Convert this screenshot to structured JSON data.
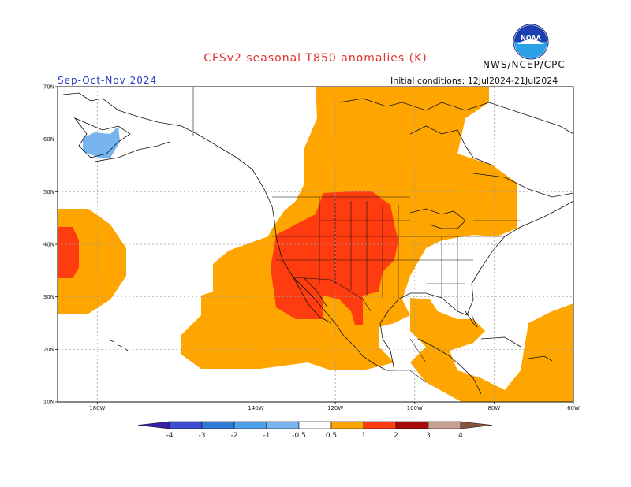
{
  "header": {
    "title": "CFSv2 seasonal T850 anomalies (K)",
    "agency": "NWS/NCEP/CPC",
    "season": "Sep-Oct-Nov 2024",
    "initial_conditions": "Initial conditions: 12Jul2024-21Jul2024",
    "logo_text": "NOAA"
  },
  "map": {
    "lon_range": [
      -190,
      -60
    ],
    "lat_range": [
      10,
      70
    ],
    "lon_ticks": [
      {
        "lon": -180,
        "label": "180W"
      },
      {
        "lon": -140,
        "label": "140W"
      },
      {
        "lon": -120,
        "label": "120W"
      },
      {
        "lon": -100,
        "label": "100W"
      },
      {
        "lon": -80,
        "label": "80W"
      },
      {
        "lon": -60,
        "label": "60W"
      }
    ],
    "lat_ticks": [
      {
        "lat": 70,
        "label": "70N"
      },
      {
        "lat": 60,
        "label": "60N"
      },
      {
        "lat": 50,
        "label": "50N"
      },
      {
        "lat": 40,
        "label": "40N"
      },
      {
        "lat": 30,
        "label": "30N"
      },
      {
        "lat": 20,
        "label": "20N"
      },
      {
        "lat": 10,
        "label": "10N"
      }
    ],
    "anomaly_levels": [
      {
        "range": [
          0.5,
          1
        ],
        "color": "#ffa500"
      },
      {
        "range": [
          1,
          2
        ],
        "color": "#ff3c10"
      },
      {
        "range": [
          -1,
          -0.5
        ],
        "color": "#78b4f0"
      }
    ]
  },
  "colorbar": {
    "colors": [
      "#3a1ea8",
      "#3c4fd2",
      "#2f7cd6",
      "#4ea0ea",
      "#78b4f0",
      "#ffffff",
      "#ffa500",
      "#ff3c10",
      "#a80a0a",
      "#c8a090",
      "#8a5040"
    ],
    "labels": [
      "-4",
      "-3",
      "-2",
      "-1",
      "-0.5",
      "0.5",
      "1",
      "2",
      "3",
      "4"
    ]
  }
}
